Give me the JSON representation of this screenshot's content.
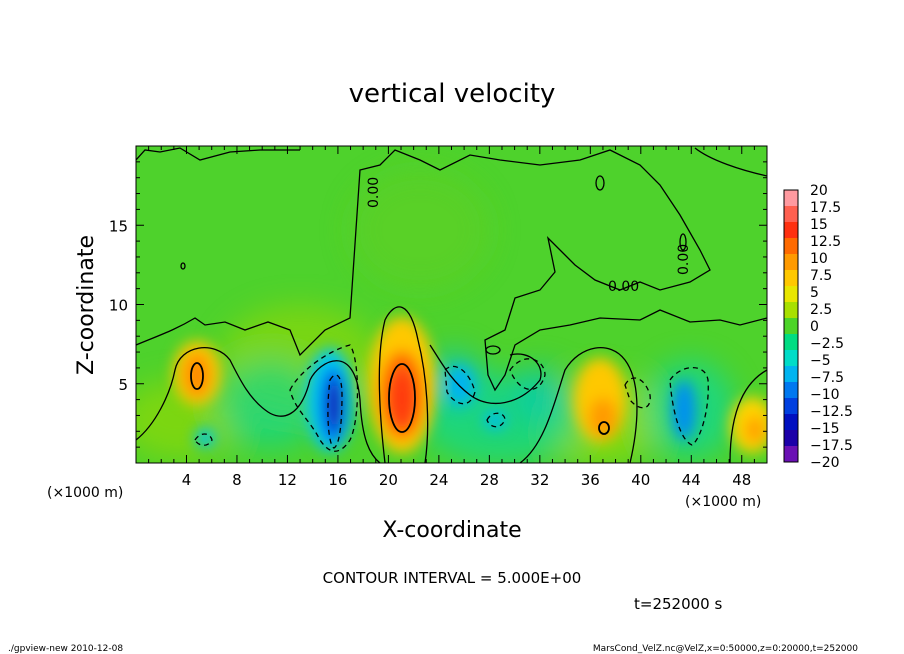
{
  "chart_data": {
    "type": "heatmap",
    "title": "vertical velocity",
    "xlabel": "X-coordinate",
    "ylabel": "Z-coordinate",
    "x_unit": "(×1000 m)",
    "y_unit": "(×1000 m)",
    "xlim": [
      0,
      50
    ],
    "ylim": [
      0,
      20
    ],
    "x_ticks": [
      4,
      8,
      12,
      16,
      20,
      24,
      28,
      32,
      36,
      40,
      44,
      48
    ],
    "y_ticks": [
      5,
      10,
      15
    ],
    "x_tick_labels": [
      "4",
      "8",
      "12",
      "16",
      "20",
      "24",
      "28",
      "32",
      "36",
      "40",
      "44",
      "48"
    ],
    "y_tick_labels": [
      "5",
      "10",
      "15"
    ],
    "contour_label": "0.00",
    "contour_interval": "CONTOUR INTERVAL = 5.000E+00",
    "time": "t=252000 s",
    "colorbar": {
      "labels": [
        "20",
        "17.5",
        "15",
        "12.5",
        "10",
        "7.5",
        "5",
        "2.5",
        "0",
        "−2.5",
        "−5",
        "−7.5",
        "−10",
        "−12.5",
        "−15",
        "−17.5",
        "−20"
      ],
      "colors": [
        "#ff9aa0",
        "#ff6050",
        "#ff3010",
        "#ff6a00",
        "#ff9a00",
        "#ffc800",
        "#e8e600",
        "#a8e000",
        "#4cd428",
        "#00dc82",
        "#00dcc8",
        "#00b4f0",
        "#0078f0",
        "#0040e0",
        "#0010c0",
        "#1c00a8",
        "#6a10b4"
      ]
    },
    "features": [
      {
        "x": 4.8,
        "z": 5.8,
        "w": 6,
        "kind": "max"
      },
      {
        "x": 15.5,
        "z": 3.8,
        "w": -15,
        "kind": "min"
      },
      {
        "x": 21.0,
        "z": 4.4,
        "w": 12,
        "kind": "max"
      },
      {
        "x": 25.5,
        "z": 5.0,
        "w": -6,
        "kind": "min"
      },
      {
        "x": 37.0,
        "z": 3.4,
        "w": 7,
        "kind": "max"
      },
      {
        "x": 43.5,
        "z": 3.5,
        "w": -7,
        "kind": "min"
      },
      {
        "x": 48.5,
        "z": 2.5,
        "w": 5,
        "kind": "max"
      }
    ]
  },
  "footer": {
    "left": "./gpview-new  2010-12-08",
    "right": "MarsCond_VelZ.nc@VelZ,x=0:50000,z=0:20000,t=252000"
  }
}
